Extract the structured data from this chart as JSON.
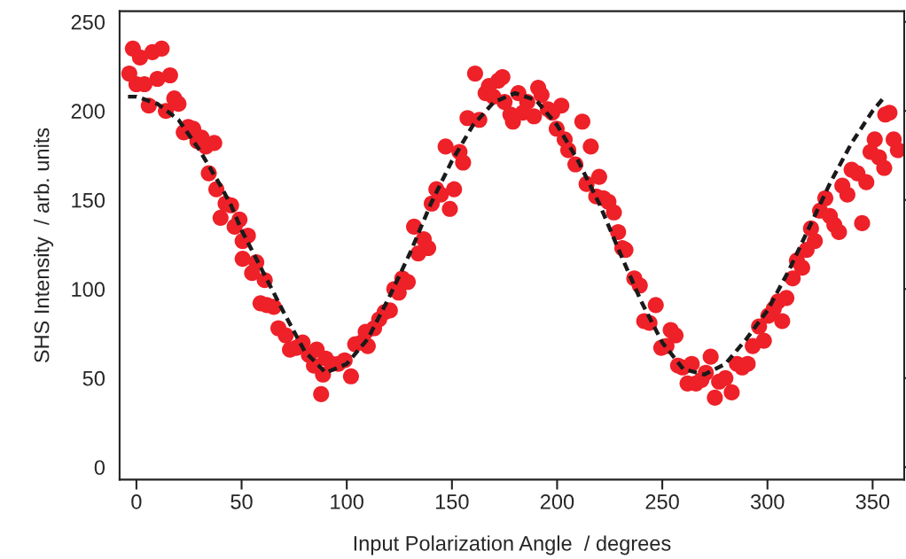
{
  "chart_data": {
    "type": "scatter",
    "xlabel": "Input Polarization Angle  / degrees",
    "ylabel": "SHS Intensity  / arb. units",
    "xlim": [
      -8,
      365
    ],
    "ylim": [
      -7,
      256
    ],
    "xticks": [
      0,
      50,
      100,
      150,
      200,
      250,
      300,
      350
    ],
    "yticks": [
      0,
      50,
      100,
      150,
      200,
      250
    ],
    "grid": false,
    "legend": false,
    "series": [
      {
        "color": "#ee2028",
        "marker": "circle",
        "x": [
          -3.4,
          -1.7,
          0,
          1.7,
          3.8,
          5.9,
          7.6,
          10,
          12,
          14,
          16,
          18,
          20,
          22.5,
          24.6,
          27,
          29,
          31,
          33,
          34.4,
          37,
          38,
          40,
          42.4,
          45,
          46.7,
          49,
          50.5,
          53,
          50.5,
          57,
          55,
          61,
          59,
          65.3,
          62,
          67.5,
          71,
          73,
          76,
          79,
          82,
          84.4,
          85.7,
          87.8,
          90,
          93,
          88.7,
          96,
          99,
          102,
          104,
          107,
          109,
          110,
          113,
          115.4,
          118,
          120.5,
          122.6,
          124.7,
          126.4,
          129,
          132,
          134,
          136.6,
          138.7,
          140.4,
          142.6,
          144.7,
          147,
          149,
          151,
          153.6,
          155.3,
          157.4,
          161,
          163,
          166,
          167.6,
          169.7,
          172,
          174,
          175,
          177.8,
          179,
          181.6,
          183.7,
          185.8,
          189,
          191,
          192.6,
          195.6,
          197.7,
          199.8,
          202,
          203.6,
          205.3,
          208.7,
          212,
          214,
          216,
          218.6,
          220,
          222,
          224.4,
          227,
          229,
          231,
          232.5,
          236.7,
          239.3,
          241.4,
          243.9,
          246.9,
          249.5,
          252,
          254,
          256.3,
          257.5,
          259.7,
          262,
          264,
          266,
          268.6,
          270.7,
          273,
          275,
          277,
          280,
          283,
          285.5,
          288,
          290.6,
          293,
          296,
          298.3,
          300.4,
          303,
          305,
          307,
          309,
          312,
          314,
          316.5,
          318.6,
          320.7,
          322.5,
          325,
          327.5,
          329.7,
          331.8,
          334,
          335.6,
          338,
          340,
          342.8,
          345,
          347,
          349,
          351,
          353,
          355.5,
          356,
          358,
          360,
          362
        ],
        "values": [
          221,
          235,
          215,
          230,
          215,
          203,
          233,
          218,
          235,
          200,
          220,
          207,
          204,
          188,
          191,
          190,
          183,
          185,
          180,
          165,
          182,
          156,
          140,
          148,
          147,
          135,
          139,
          127,
          130,
          117,
          115,
          109,
          105,
          92,
          90,
          91,
          78,
          74,
          66,
          67,
          70,
          63,
          57,
          66,
          41,
          61,
          58,
          52,
          58,
          60,
          51,
          69,
          70,
          76,
          68,
          78,
          83,
          87,
          88,
          100,
          98,
          106,
          104,
          135,
          120,
          128,
          123,
          148,
          156,
          153,
          180,
          145,
          156,
          177,
          171,
          196,
          221,
          195,
          210,
          214,
          208,
          217,
          219,
          205,
          198,
          194,
          210,
          199,
          205,
          197,
          213,
          209,
          201,
          199,
          190,
          203,
          184,
          178,
          170,
          194,
          159,
          180,
          152,
          163,
          151,
          149,
          143,
          132,
          123,
          122,
          106,
          102,
          82,
          81,
          91,
          67,
          68,
          77,
          74,
          57,
          56,
          47,
          58,
          47,
          49,
          53,
          62,
          39,
          48,
          50,
          42,
          58,
          56,
          58,
          68,
          79,
          71,
          85,
          89,
          93,
          82,
          95,
          106,
          116,
          112,
          122,
          134,
          127,
          144,
          151,
          141,
          136,
          132,
          158,
          153,
          167,
          165,
          137,
          160,
          177,
          184,
          174,
          168,
          198,
          199,
          184,
          178
        ]
      },
      {
        "type": "line",
        "color": "#1a1a1a",
        "line_style": "dashed",
        "marker": "none",
        "x": [
          -4,
          0,
          10,
          20,
          30,
          40,
          45,
          50,
          60,
          70,
          80,
          90,
          100,
          110,
          120,
          130,
          140,
          150,
          160,
          170,
          180,
          190,
          200,
          210,
          220,
          230,
          240,
          250,
          260,
          270,
          280,
          290,
          300,
          310,
          320,
          330,
          340,
          350,
          355
        ],
        "values": [
          208,
          208,
          204,
          195,
          178,
          158,
          147,
          133,
          110,
          87,
          65,
          53,
          58,
          72,
          95,
          120,
          148,
          172,
          192,
          205,
          210,
          206,
          192,
          172,
          148,
          120,
          93,
          70,
          55,
          52,
          58,
          72,
          88,
          110,
          135,
          160,
          182,
          200,
          207
        ]
      }
    ]
  }
}
